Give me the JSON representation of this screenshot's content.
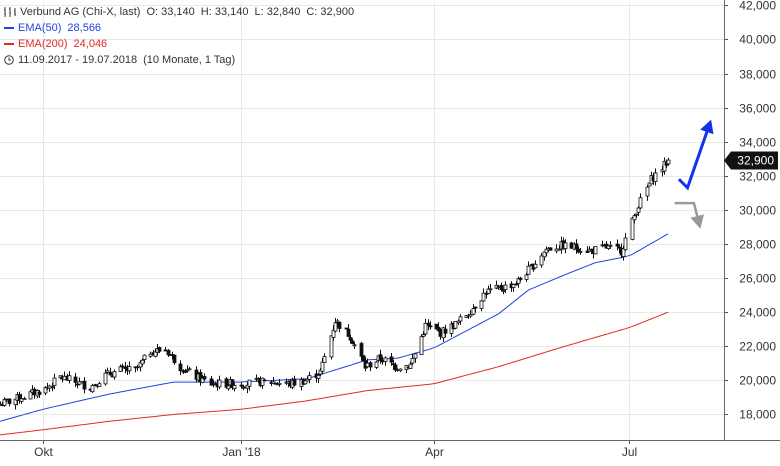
{
  "legend": {
    "instrument": "Verbund AG (Chi-X, last)",
    "open": "O: 33,140",
    "high": "H: 33,140",
    "low": "L: 32,840",
    "close": "C: 32,900",
    "ema50_label": "EMA(50)",
    "ema50_value": "28,566",
    "ema200_label": "EMA(200)",
    "ema200_value": "24,046",
    "period": "11.09.2017 - 19.07.2018",
    "interval": "(10 Monate, 1 Tag)"
  },
  "chart_data": {
    "type": "line",
    "title": "Verbund AG (Chi-X, last)",
    "x_tick_labels": [
      "Okt",
      "Jan '18",
      "Apr",
      "Jul"
    ],
    "x_tick_dates": [
      "2017-10-01",
      "2018-01-01",
      "2018-04-01",
      "2018-07-01"
    ],
    "x_range": [
      "2017-09-11",
      "2018-08-14"
    ],
    "y_tick_labels": [
      "18,000",
      "20,000",
      "22,000",
      "24,000",
      "26,000",
      "28,000",
      "30,000",
      "32,000",
      "34,000",
      "36,000",
      "38,000",
      "40,000",
      "42,000"
    ],
    "ylim": [
      16.5,
      42.2
    ],
    "y_axis_position": "right",
    "grid": true,
    "last_price_label": "32,900",
    "colors": {
      "candles": "#111111",
      "ema50": "#2244dd",
      "ema200": "#e02b20",
      "arrow_up": "#1133ee",
      "arrow_down": "#999999",
      "grid": "#e8e8e8",
      "price_badge": "#111111"
    },
    "series": [
      {
        "name": "Verbund AG (Chi-X, last)",
        "kind": "close",
        "points": [
          [
            "2017-09-11",
            18.6
          ],
          [
            "2017-09-18",
            18.9
          ],
          [
            "2017-09-25",
            19.2
          ],
          [
            "2017-10-02",
            19.5
          ],
          [
            "2017-10-09",
            20.2
          ],
          [
            "2017-10-16",
            19.9
          ],
          [
            "2017-10-23",
            19.6
          ],
          [
            "2017-10-30",
            20.3
          ],
          [
            "2017-11-06",
            20.6
          ],
          [
            "2017-11-13",
            20.6
          ],
          [
            "2017-11-20",
            21.7
          ],
          [
            "2017-11-27",
            21.8
          ],
          [
            "2017-12-04",
            20.8
          ],
          [
            "2017-12-11",
            20.2
          ],
          [
            "2017-12-18",
            19.8
          ],
          [
            "2017-12-27",
            19.8
          ],
          [
            "2018-01-03",
            19.8
          ],
          [
            "2018-01-10",
            19.9
          ],
          [
            "2018-01-17",
            19.9
          ],
          [
            "2018-01-24",
            19.8
          ],
          [
            "2018-01-31",
            20.0
          ],
          [
            "2018-02-07",
            20.5
          ],
          [
            "2018-02-14",
            23.5
          ],
          [
            "2018-02-21",
            22.6
          ],
          [
            "2018-02-28",
            20.8
          ],
          [
            "2018-03-07",
            21.3
          ],
          [
            "2018-03-14",
            20.8
          ],
          [
            "2018-03-21",
            20.9
          ],
          [
            "2018-03-28",
            23.2
          ],
          [
            "2018-04-04",
            22.8
          ],
          [
            "2018-04-11",
            23.3
          ],
          [
            "2018-04-18",
            24.1
          ],
          [
            "2018-04-25",
            25.2
          ],
          [
            "2018-05-02",
            25.4
          ],
          [
            "2018-05-09",
            25.7
          ],
          [
            "2018-05-16",
            26.6
          ],
          [
            "2018-05-23",
            27.7
          ],
          [
            "2018-05-30",
            27.9
          ],
          [
            "2018-06-06",
            27.8
          ],
          [
            "2018-06-13",
            27.6
          ],
          [
            "2018-06-20",
            27.8
          ],
          [
            "2018-06-27",
            27.6
          ],
          [
            "2018-07-04",
            30.0
          ],
          [
            "2018-07-11",
            31.8
          ],
          [
            "2018-07-19",
            32.9
          ]
        ]
      },
      {
        "name": "EMA(50)",
        "kind": "ema",
        "points": [
          [
            "2017-09-11",
            17.6
          ],
          [
            "2017-10-01",
            18.3
          ],
          [
            "2017-11-01",
            19.2
          ],
          [
            "2017-12-01",
            19.9
          ],
          [
            "2018-01-01",
            19.9
          ],
          [
            "2018-02-01",
            20.1
          ],
          [
            "2018-03-01",
            21.2
          ],
          [
            "2018-03-15",
            21.3
          ],
          [
            "2018-04-01",
            21.9
          ],
          [
            "2018-05-01",
            23.9
          ],
          [
            "2018-05-15",
            25.3
          ],
          [
            "2018-06-01",
            26.2
          ],
          [
            "2018-06-15",
            26.9
          ],
          [
            "2018-07-01",
            27.3
          ],
          [
            "2018-07-19",
            28.6
          ]
        ]
      },
      {
        "name": "EMA(200)",
        "kind": "ema",
        "points": [
          [
            "2017-09-11",
            16.8
          ],
          [
            "2017-10-01",
            17.1
          ],
          [
            "2017-11-01",
            17.6
          ],
          [
            "2017-12-01",
            18.0
          ],
          [
            "2018-01-01",
            18.3
          ],
          [
            "2018-02-01",
            18.8
          ],
          [
            "2018-03-01",
            19.4
          ],
          [
            "2018-04-01",
            19.8
          ],
          [
            "2018-05-01",
            20.8
          ],
          [
            "2018-06-01",
            22.0
          ],
          [
            "2018-07-01",
            23.1
          ],
          [
            "2018-07-19",
            24.0
          ]
        ]
      }
    ],
    "annotations": [
      {
        "type": "arrow",
        "direction": "up",
        "from": [
          "2018-07-24",
          31.8
        ],
        "via": [
          "2018-07-28",
          31.3
        ],
        "to": [
          "2018-08-08",
          35.3
        ]
      },
      {
        "type": "arrow",
        "direction": "down",
        "from": [
          "2018-07-22",
          30.4
        ],
        "via": [
          "2018-07-31",
          30.4
        ],
        "to": [
          "2018-08-03",
          28.9
        ]
      }
    ]
  }
}
